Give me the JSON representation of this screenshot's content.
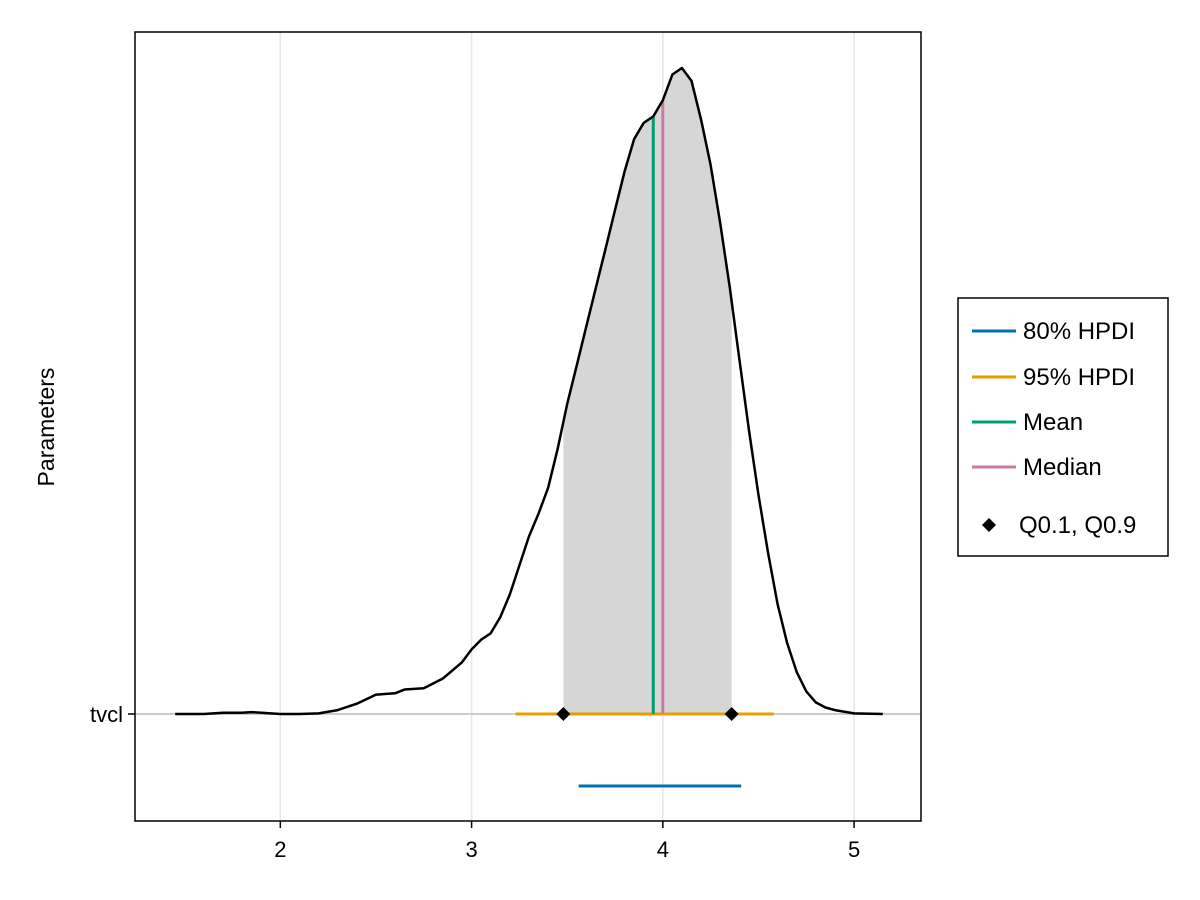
{
  "chart_data": {
    "type": "density",
    "title": "",
    "xlabel": "",
    "ylabel": "Parameters",
    "xlim": [
      1.24,
      5.35
    ],
    "x_ticks": [
      2,
      3,
      4,
      5
    ],
    "y_categories": [
      "tvcl"
    ],
    "grid": {
      "x": true,
      "y": false
    },
    "legend_position": "right",
    "series": [
      {
        "parameter": "tvcl",
        "density_curve": [
          [
            1.45,
            0.0
          ],
          [
            1.6,
            0.0
          ],
          [
            1.7,
            0.002
          ],
          [
            1.8,
            0.002
          ],
          [
            1.85,
            0.003
          ],
          [
            1.95,
            0.001
          ],
          [
            2.0,
            0.0
          ],
          [
            2.1,
            0.0
          ],
          [
            2.2,
            0.001
          ],
          [
            2.3,
            0.006
          ],
          [
            2.4,
            0.016
          ],
          [
            2.5,
            0.03
          ],
          [
            2.6,
            0.032
          ],
          [
            2.65,
            0.038
          ],
          [
            2.75,
            0.04
          ],
          [
            2.85,
            0.055
          ],
          [
            2.95,
            0.08
          ],
          [
            3.0,
            0.1
          ],
          [
            3.05,
            0.115
          ],
          [
            3.1,
            0.125
          ],
          [
            3.15,
            0.15
          ],
          [
            3.2,
            0.185
          ],
          [
            3.25,
            0.23
          ],
          [
            3.3,
            0.275
          ],
          [
            3.35,
            0.31
          ],
          [
            3.4,
            0.35
          ],
          [
            3.45,
            0.41
          ],
          [
            3.5,
            0.48
          ],
          [
            3.55,
            0.54
          ],
          [
            3.6,
            0.6
          ],
          [
            3.65,
            0.66
          ],
          [
            3.7,
            0.72
          ],
          [
            3.75,
            0.78
          ],
          [
            3.8,
            0.84
          ],
          [
            3.85,
            0.89
          ],
          [
            3.9,
            0.915
          ],
          [
            3.95,
            0.925
          ],
          [
            4.0,
            0.95
          ],
          [
            4.05,
            0.99
          ],
          [
            4.1,
            1.0
          ],
          [
            4.15,
            0.98
          ],
          [
            4.2,
            0.92
          ],
          [
            4.25,
            0.85
          ],
          [
            4.3,
            0.76
          ],
          [
            4.35,
            0.66
          ],
          [
            4.4,
            0.55
          ],
          [
            4.45,
            0.44
          ],
          [
            4.5,
            0.34
          ],
          [
            4.55,
            0.25
          ],
          [
            4.6,
            0.17
          ],
          [
            4.65,
            0.11
          ],
          [
            4.7,
            0.065
          ],
          [
            4.75,
            0.035
          ],
          [
            4.8,
            0.018
          ],
          [
            4.85,
            0.01
          ],
          [
            4.9,
            0.006
          ],
          [
            5.0,
            0.001
          ],
          [
            5.15,
            0.0
          ]
        ],
        "shaded_interval": [
          3.48,
          4.36
        ],
        "hpdi_80": [
          3.56,
          4.41
        ],
        "hpdi_95": [
          3.23,
          4.58
        ],
        "mean": 3.95,
        "median": 4.0,
        "quantiles": [
          3.48,
          4.36
        ]
      }
    ]
  },
  "legend": {
    "items": [
      {
        "label": "80% HPDI",
        "color": "#0072b2",
        "marker": "line"
      },
      {
        "label": "95% HPDI",
        "color": "#e69f00",
        "marker": "line"
      },
      {
        "label": "Mean",
        "color": "#009e73",
        "marker": "line"
      },
      {
        "label": "Median",
        "color": "#cc79a7",
        "marker": "line"
      },
      {
        "label": "Q0.1, Q0.9",
        "color": "#000000",
        "marker": "diamond"
      }
    ]
  },
  "colors": {
    "fill": "#d6d6d6",
    "curve": "#000000",
    "grid": "#e6e6e6",
    "baseline": "#cccccc"
  }
}
